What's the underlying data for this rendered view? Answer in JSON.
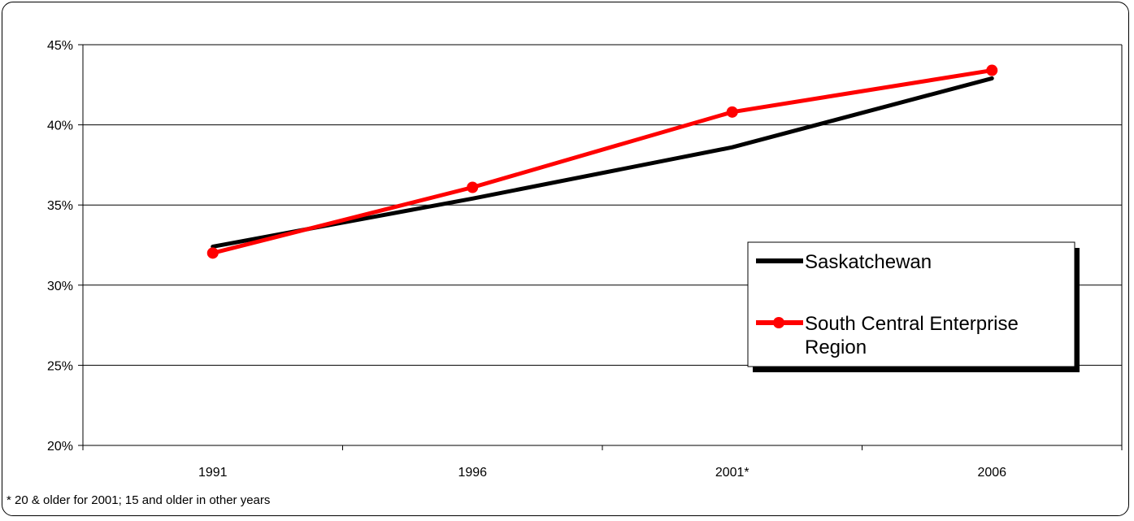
{
  "chart_data": {
    "type": "line",
    "categories": [
      "1991",
      "1996",
      "2001*",
      "2006"
    ],
    "ylim": [
      0.2,
      0.45
    ],
    "y_ticks": [
      0.2,
      0.25,
      0.3,
      0.35,
      0.4,
      0.45
    ],
    "y_tick_labels": [
      "20%",
      "25%",
      "30%",
      "35%",
      "40%",
      "45%"
    ],
    "grid": true,
    "legend_position": "right",
    "series": [
      {
        "name": "Saskatchewan",
        "values": [
          0.324,
          0.354,
          0.386,
          0.429
        ],
        "color": "#000000",
        "markers": false
      },
      {
        "name": "South Central Enterprise Region",
        "values": [
          0.32,
          0.361,
          0.408,
          0.434
        ],
        "color": "#ff0000",
        "markers": true
      }
    ],
    "footnote": "* 20 & older for 2001; 15 and older in other years"
  }
}
